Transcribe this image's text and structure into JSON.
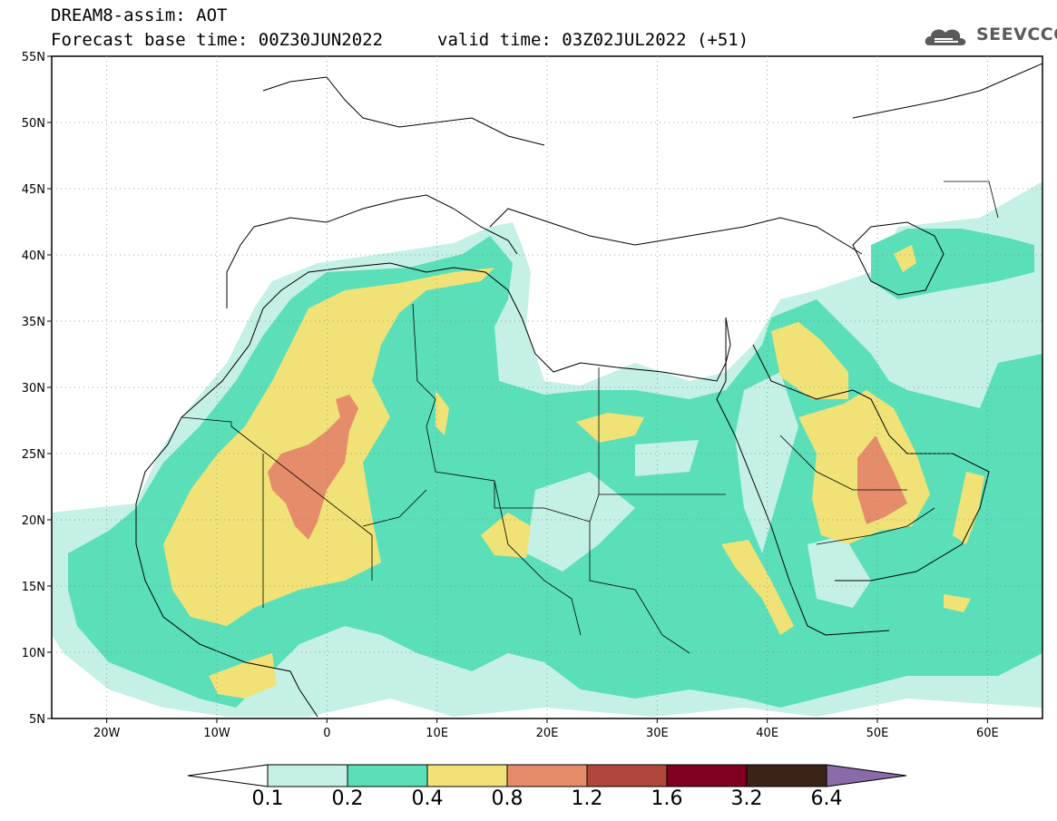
{
  "header": {
    "line1": "DREAM8-assim: AOT",
    "base_time": "Forecast base time: 00Z30JUN2022",
    "valid_time": "valid time: 03Z02JUL2022 (+51)"
  },
  "logo": {
    "text": "SEEVCCC",
    "icon": "cloud-icon"
  },
  "map": {
    "lon_range": [
      -25,
      65
    ],
    "lat_range": [
      5,
      55
    ],
    "lon_ticks": [
      "20W",
      "10W",
      "0",
      "10E",
      "20E",
      "30E",
      "40E",
      "50E",
      "60E"
    ],
    "lat_ticks": [
      "5N",
      "10N",
      "15N",
      "20N",
      "25N",
      "30N",
      "35N",
      "40N",
      "45N",
      "50N",
      "55N"
    ]
  },
  "colorbar": {
    "labels": [
      "0.1",
      "0.2",
      "0.4",
      "0.8",
      "1.2",
      "1.6",
      "3.2",
      "6.4"
    ],
    "colors": [
      "#ffffff",
      "#c4f0e6",
      "#5adfb8",
      "#f1e278",
      "#e58c6b",
      "#b0473a",
      "#800020",
      "#3a2418",
      "#8a6aa8"
    ]
  },
  "colors": {
    "aot_01_02": "#c4f0e6",
    "aot_02_04": "#5adfb8",
    "aot_04_08": "#f1e278",
    "aot_08_12": "#e58c6b"
  }
}
